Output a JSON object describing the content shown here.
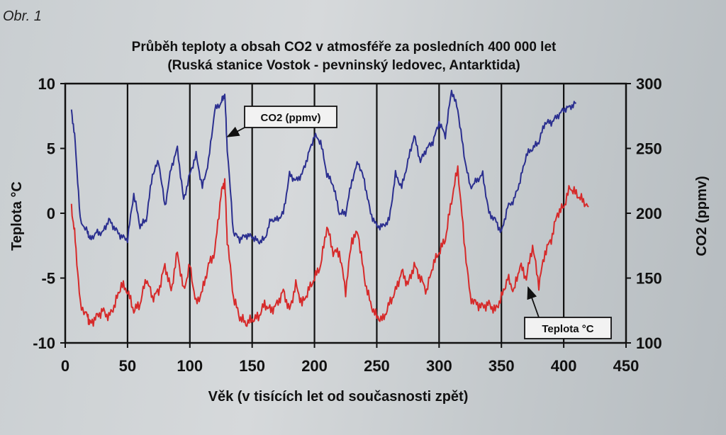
{
  "figure_label": "Obr. 1",
  "chart_data": {
    "type": "line",
    "title": "Průběh teploty a obsah CO2 v atmosféře za posledních 400 000 let",
    "subtitle": "(Ruská stanice Vostok - pevninský ledovec, Antarktida)",
    "xlabel": "Věk (v tisících let od současnosti zpět)",
    "ylabel_left": "Teplota °C",
    "ylabel_right": "CO2 (ppmv)",
    "xlim": [
      0,
      450
    ],
    "ylim_left": [
      -10,
      10
    ],
    "ylim_right": [
      100,
      300
    ],
    "x_ticks": [
      "0",
      "50",
      "100",
      "150",
      "200",
      "250",
      "300",
      "350",
      "400",
      "450"
    ],
    "y_ticks_left": [
      "10",
      "5",
      "0",
      "-5",
      "-10"
    ],
    "y_ticks_right": [
      "300",
      "250",
      "200",
      "150",
      "100"
    ],
    "grid": "vertical",
    "annotations": [
      {
        "text": "CO2 (ppmv)",
        "points_to": [
          128,
          258
        ]
      },
      {
        "text": "Teplota °C",
        "points_to": [
          368,
          -5.5
        ]
      }
    ],
    "series": [
      {
        "name": "CO2 (ppmv)",
        "axis": "right",
        "color": "#2b2f8f",
        "x": [
          5,
          8,
          12,
          18,
          20,
          25,
          30,
          35,
          40,
          45,
          50,
          55,
          60,
          65,
          70,
          75,
          80,
          85,
          90,
          95,
          100,
          105,
          110,
          115,
          120,
          125,
          128,
          130,
          135,
          140,
          145,
          150,
          155,
          160,
          165,
          170,
          175,
          180,
          185,
          190,
          195,
          200,
          205,
          210,
          215,
          220,
          225,
          230,
          235,
          240,
          245,
          250,
          255,
          260,
          265,
          270,
          275,
          280,
          285,
          290,
          295,
          300,
          305,
          310,
          315,
          320,
          325,
          330,
          335,
          340,
          345,
          350,
          355,
          360,
          365,
          370,
          375,
          380,
          385,
          390,
          395,
          400,
          405,
          410
        ],
        "y": [
          280,
          255,
          195,
          185,
          180,
          185,
          185,
          195,
          188,
          182,
          180,
          215,
          190,
          195,
          230,
          240,
          205,
          235,
          250,
          210,
          230,
          245,
          220,
          240,
          280,
          285,
          292,
          250,
          185,
          180,
          183,
          182,
          178,
          180,
          195,
          195,
          200,
          230,
          225,
          230,
          245,
          260,
          255,
          230,
          222,
          200,
          200,
          225,
          240,
          225,
          200,
          190,
          190,
          195,
          230,
          220,
          240,
          260,
          240,
          250,
          255,
          270,
          260,
          295,
          280,
          245,
          220,
          225,
          230,
          200,
          195,
          185,
          205,
          210,
          225,
          245,
          250,
          255,
          270,
          270,
          275,
          280,
          282,
          285
        ]
      },
      {
        "name": "Teplota °C",
        "axis": "left",
        "color": "#d62a2a",
        "x": [
          5,
          8,
          12,
          18,
          20,
          25,
          30,
          35,
          40,
          45,
          50,
          55,
          60,
          65,
          70,
          75,
          80,
          85,
          90,
          95,
          100,
          105,
          110,
          115,
          120,
          125,
          128,
          130,
          135,
          140,
          145,
          150,
          155,
          160,
          165,
          170,
          175,
          180,
          185,
          190,
          195,
          200,
          205,
          210,
          215,
          220,
          225,
          230,
          235,
          240,
          245,
          250,
          255,
          260,
          265,
          270,
          275,
          280,
          285,
          290,
          295,
          300,
          305,
          310,
          315,
          320,
          325,
          330,
          335,
          340,
          345,
          350,
          355,
          360,
          365,
          370,
          375,
          380,
          385,
          390,
          395,
          400,
          405,
          410,
          415,
          420
        ],
        "y": [
          0.5,
          -2,
          -7,
          -8,
          -8.5,
          -8,
          -7.5,
          -8,
          -7,
          -5.5,
          -6,
          -7.5,
          -7,
          -5,
          -6.5,
          -6,
          -4,
          -6,
          -3,
          -6,
          -4,
          -7,
          -6,
          -4,
          -3,
          1.5,
          2.5,
          -2,
          -6.5,
          -8,
          -8.5,
          -8.2,
          -8,
          -7,
          -7.5,
          -7,
          -6,
          -7.5,
          -5.5,
          -7,
          -6,
          -5,
          -4,
          -1,
          -3,
          -3,
          -6,
          -2,
          -1.5,
          -5,
          -7,
          -8,
          -8.2,
          -7,
          -6,
          -4.5,
          -5.5,
          -4,
          -5,
          -6,
          -4,
          -3,
          -2,
          1,
          3.5,
          -2,
          -6.5,
          -7,
          -7.2,
          -7,
          -7.5,
          -6.5,
          -5,
          -6,
          -4,
          -5,
          -2.5,
          -5.5,
          -3,
          -2,
          0,
          0.5,
          2,
          1.5,
          1,
          0.5
        ]
      }
    ]
  }
}
